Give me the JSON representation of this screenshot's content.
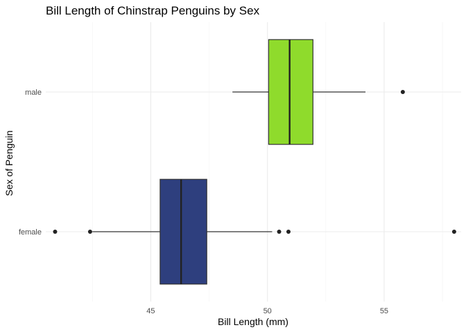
{
  "chart_data": {
    "type": "boxplot",
    "orientation": "horizontal",
    "title": "Bill Length of Chinstrap Penguins by Sex",
    "xlabel": "Bill Length (mm)",
    "ylabel": "Sex of Penguin",
    "xlim": [
      40.5,
      58.3
    ],
    "xticks": [
      45,
      50,
      55
    ],
    "grid": true,
    "categories": [
      "female",
      "male"
    ],
    "boxes": [
      {
        "category": "female",
        "color": "#2e3f7e",
        "whisker_low": 42.5,
        "q1": 45.4,
        "median": 46.3,
        "q3": 47.4,
        "whisker_high": 50.2,
        "outliers": [
          40.9,
          42.4,
          50.5,
          50.9,
          58.0
        ]
      },
      {
        "category": "male",
        "color": "#8fdb2c",
        "whisker_low": 48.5,
        "q1": 50.05,
        "median": 50.95,
        "q3": 51.95,
        "whisker_high": 54.2,
        "outliers": [
          55.8
        ]
      }
    ]
  }
}
